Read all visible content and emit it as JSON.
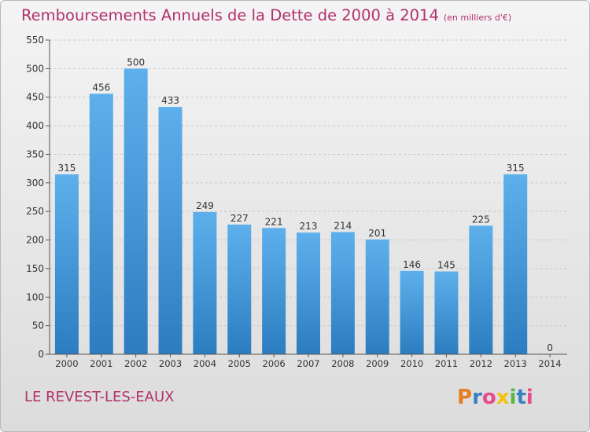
{
  "title": "Remboursements Annuels de la Dette de 2000 à 2014",
  "unit": "(en milliers d'€)",
  "commune": "LE REVEST-LES-EAUX",
  "logo": "Proxiti",
  "colors": {
    "title": "#b3306b",
    "bar_top": "#5eb0ec",
    "bar_bottom": "#2b7dc0"
  },
  "chart_data": {
    "type": "bar",
    "categories": [
      "2000",
      "2001",
      "2002",
      "2003",
      "2004",
      "2005",
      "2006",
      "2007",
      "2008",
      "2009",
      "2010",
      "2011",
      "2012",
      "2013",
      "2014"
    ],
    "values": [
      315,
      456,
      500,
      433,
      249,
      227,
      221,
      213,
      214,
      201,
      146,
      145,
      225,
      315,
      0
    ],
    "ylim": [
      0,
      550
    ],
    "yticks": [
      0,
      50,
      100,
      150,
      200,
      250,
      300,
      350,
      400,
      450,
      500,
      550
    ],
    "grid": true
  }
}
